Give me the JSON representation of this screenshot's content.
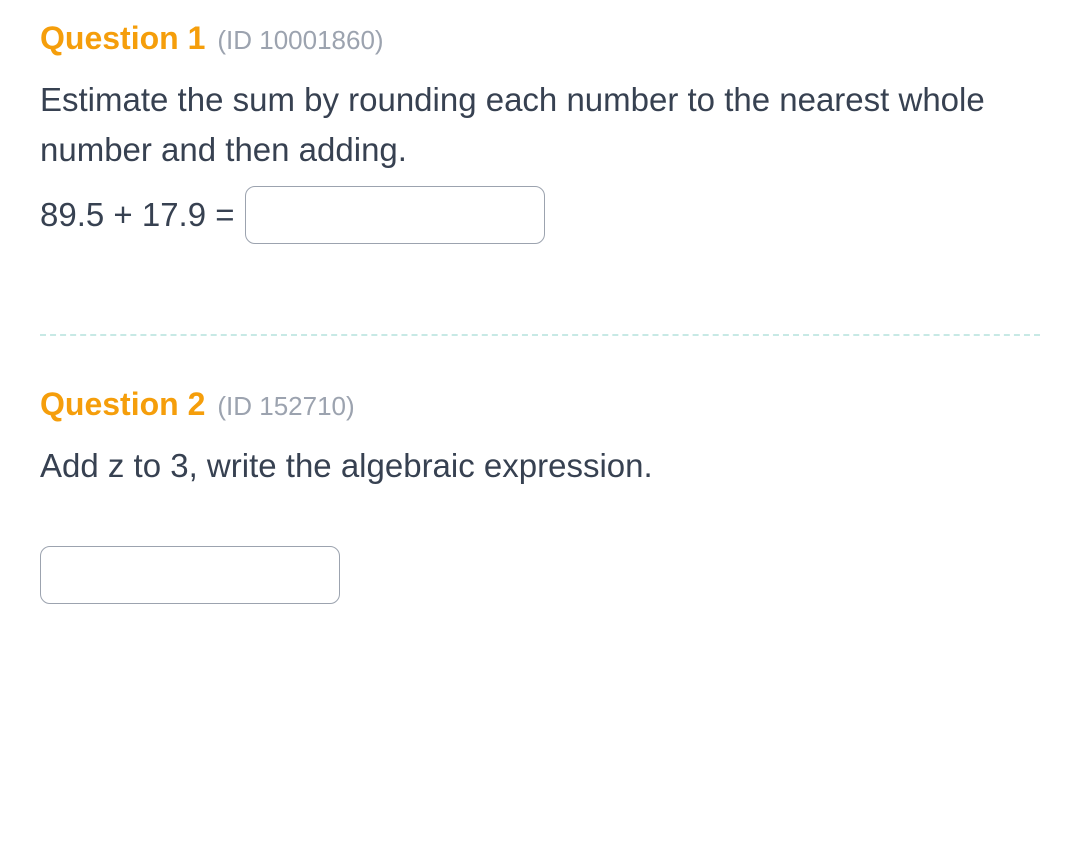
{
  "colors": {
    "question_title": "#f59e0b",
    "question_id": "#9ca3af",
    "body_text": "#374151",
    "input_border": "#9ca3af",
    "divider": "#c7e9e5",
    "background": "#ffffff"
  },
  "typography": {
    "title_fontsize": 32,
    "title_weight": 600,
    "id_fontsize": 26,
    "body_fontsize": 33
  },
  "questions": [
    {
      "title": "Question 1",
      "id_label": "(ID 10001860)",
      "prompt": "Estimate the sum by rounding each number to the nearest whole number and then adding.",
      "expression": "89.5 + 17.9 =",
      "input_value": ""
    },
    {
      "title": "Question 2",
      "id_label": "(ID 152710)",
      "prompt": "Add z to 3, write the algebraic expression.",
      "input_value": ""
    }
  ]
}
